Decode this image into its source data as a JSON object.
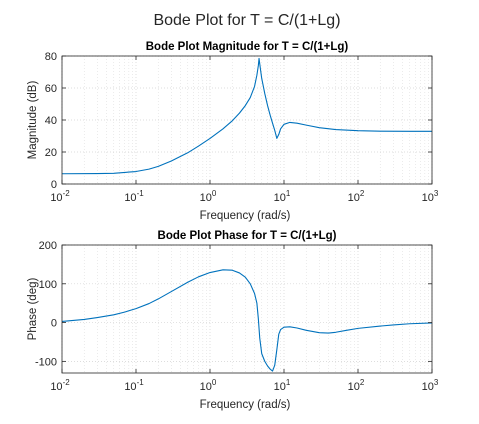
{
  "figure": {
    "suptitle": "Bode Plot for T = C/(1+Lg)"
  },
  "chart_data": [
    {
      "type": "line",
      "title": "Bode Plot Magnitude for T = C/(1+Lg)",
      "xlabel": "Frequency (rad/s)",
      "ylabel": "Magnitude (dB)",
      "xscale": "log",
      "xlim": [
        0.01,
        1000
      ],
      "ylim": [
        0,
        80
      ],
      "grid": true,
      "minor_grid": true,
      "x_ticks": [
        {
          "value": 0.01,
          "base": "10",
          "exp": "-2"
        },
        {
          "value": 0.1,
          "base": "10",
          "exp": "-1"
        },
        {
          "value": 1,
          "base": "10",
          "exp": "0"
        },
        {
          "value": 10,
          "base": "10",
          "exp": "1"
        },
        {
          "value": 100,
          "base": "10",
          "exp": "2"
        },
        {
          "value": 1000,
          "base": "10",
          "exp": "3"
        }
      ],
      "y_ticks": [
        0,
        20,
        40,
        60,
        80
      ],
      "line_color": "#0072BD",
      "series": [
        {
          "x": [
            0.01,
            0.03,
            0.05,
            0.1,
            0.15,
            0.2,
            0.3,
            0.5,
            0.7,
            1,
            1.5,
            2,
            2.5,
            3,
            3.5,
            4,
            4.3,
            4.5,
            4.6,
            4.8,
            5,
            5.5,
            6,
            6.5,
            7,
            7.5,
            8,
            8.5,
            9,
            10,
            12,
            15,
            20,
            30,
            50,
            100,
            200,
            500,
            1000
          ],
          "y": [
            6.4,
            6.5,
            6.7,
            7.8,
            9.3,
            11.0,
            14.4,
            19.5,
            23.7,
            28.5,
            34.5,
            39.5,
            44.3,
            49.0,
            54.0,
            61.0,
            68.0,
            74.0,
            78.5,
            72.0,
            66.0,
            56.5,
            49.0,
            43.0,
            38.0,
            33.5,
            28.5,
            31.0,
            34.5,
            37.3,
            38.5,
            38.0,
            36.8,
            35.2,
            34.0,
            33.3,
            33.0,
            32.9,
            32.9
          ]
        }
      ]
    },
    {
      "type": "line",
      "title": "Bode Plot Phase for T = C/(1+Lg)",
      "xlabel": "Frequency (rad/s)",
      "ylabel": "Phase (deg)",
      "xscale": "log",
      "xlim": [
        0.01,
        1000
      ],
      "ylim": [
        -130,
        200
      ],
      "grid": true,
      "minor_grid": true,
      "x_ticks": [
        {
          "value": 0.01,
          "base": "10",
          "exp": "-2"
        },
        {
          "value": 0.1,
          "base": "10",
          "exp": "-1"
        },
        {
          "value": 1,
          "base": "10",
          "exp": "0"
        },
        {
          "value": 10,
          "base": "10",
          "exp": "1"
        },
        {
          "value": 100,
          "base": "10",
          "exp": "2"
        },
        {
          "value": 1000,
          "base": "10",
          "exp": "3"
        }
      ],
      "y_ticks": [
        -100,
        0,
        100,
        200
      ],
      "line_color": "#0072BD",
      "series": [
        {
          "x": [
            0.01,
            0.02,
            0.03,
            0.05,
            0.07,
            0.1,
            0.15,
            0.2,
            0.3,
            0.5,
            0.7,
            1,
            1.5,
            2,
            2.5,
            3,
            3.5,
            4,
            4.3,
            4.5,
            4.7,
            5,
            5.5,
            6,
            6.5,
            7,
            7.5,
            8,
            8.5,
            9,
            10,
            12,
            15,
            20,
            30,
            40,
            50,
            70,
            100,
            200,
            300,
            500,
            1000
          ],
          "y": [
            3,
            8,
            13,
            20,
            27,
            36,
            49,
            61,
            80,
            104,
            118,
            129,
            136,
            135,
            128,
            117,
            100,
            75,
            50,
            10,
            -40,
            -80,
            -100,
            -112,
            -120,
            -125,
            -110,
            -70,
            -30,
            -18,
            -12,
            -11,
            -14,
            -20,
            -26,
            -27,
            -25,
            -20,
            -15,
            -9,
            -6,
            -3,
            -1
          ]
        }
      ]
    }
  ]
}
